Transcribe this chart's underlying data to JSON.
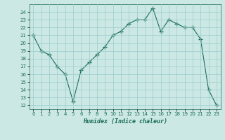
{
  "x": [
    0,
    1,
    2,
    3,
    4,
    5,
    6,
    7,
    8,
    9,
    10,
    11,
    12,
    13,
    14,
    15,
    16,
    17,
    18,
    19,
    20,
    21,
    22,
    23
  ],
  "y": [
    21,
    19,
    18.5,
    17,
    16,
    12.5,
    16.5,
    17.5,
    18.5,
    19.5,
    21,
    21.5,
    22.5,
    23,
    23,
    24.5,
    21.5,
    23,
    22.5,
    22,
    22,
    20.5,
    14,
    12
  ],
  "line_color": "#1a6b5a",
  "marker": "+",
  "marker_size": 4,
  "marker_lw": 1.0,
  "bg_color": "#cce8e4",
  "grid_color": "#99cccc",
  "xlabel": "Humidex (Indice chaleur)",
  "xlim": [
    -0.5,
    23.5
  ],
  "ylim": [
    11.5,
    25
  ],
  "yticks": [
    12,
    13,
    14,
    15,
    16,
    17,
    18,
    19,
    20,
    21,
    22,
    23,
    24
  ],
  "xticks": [
    0,
    1,
    2,
    3,
    4,
    5,
    6,
    7,
    8,
    9,
    10,
    11,
    12,
    13,
    14,
    15,
    16,
    17,
    18,
    19,
    20,
    21,
    22,
    23
  ]
}
